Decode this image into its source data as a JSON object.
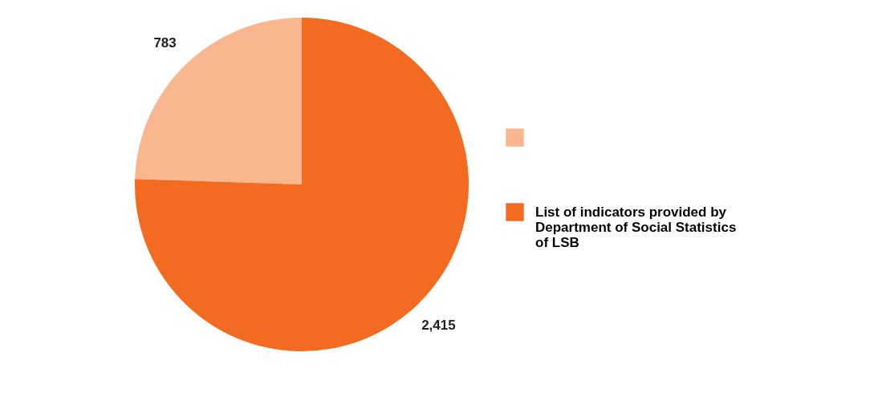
{
  "chart_data": {
    "type": "pie",
    "categories": [
      null,
      "List of indicators provided by Department of Social Statistics of LSB"
    ],
    "values": [
      783,
      2415
    ],
    "colors": [
      "#f9b68f",
      "#f26b21"
    ],
    "value_labels": [
      "783",
      "2,415"
    ],
    "legend": "right"
  }
}
